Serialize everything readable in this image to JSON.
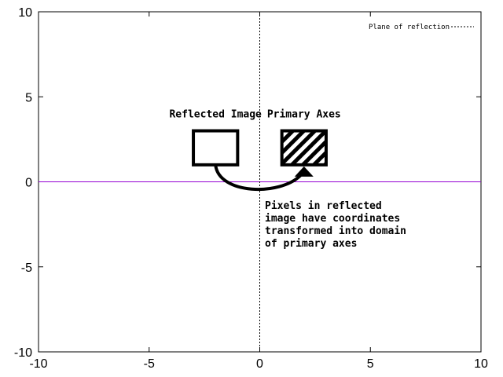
{
  "chart_data": {
    "type": "scatter",
    "title": "",
    "xlabel": "",
    "ylabel": "",
    "xlim": [
      -10,
      10
    ],
    "ylim": [
      -10,
      10
    ],
    "xticks": [
      -10,
      -5,
      0,
      5,
      10
    ],
    "yticks": [
      -10,
      -5,
      0,
      5,
      10
    ],
    "grid": false,
    "legend": {
      "placement": "top-right",
      "entries": [
        "Plane of reflection"
      ]
    },
    "plane_of_reflection_x": 0,
    "horizontal_line": {
      "y": 0,
      "color": "#9400d3"
    },
    "boxes": [
      {
        "label": "Reflected Image",
        "x": [
          -3,
          -1
        ],
        "y": [
          1,
          3
        ],
        "hatched": false
      },
      {
        "label": "Primary Axes",
        "x": [
          1,
          3
        ],
        "y": [
          1,
          3
        ],
        "hatched": true
      }
    ],
    "arrow": {
      "from": [
        -2,
        1
      ],
      "to": [
        2,
        1
      ]
    },
    "annotation": [
      "Pixels in reflected",
      "image have coordinates",
      "transformed into domain",
      "of primary axes"
    ],
    "colors": {
      "axis": "#000000",
      "zero_line": "#9400d3"
    }
  }
}
